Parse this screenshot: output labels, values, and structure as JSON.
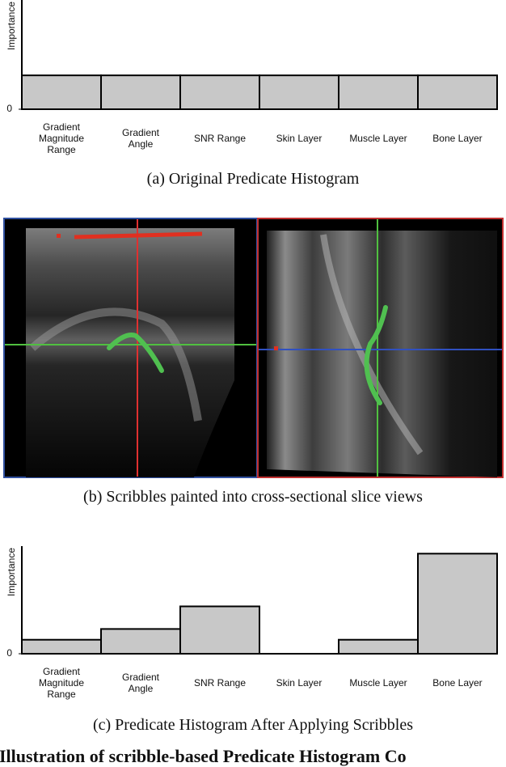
{
  "chart_data": [
    {
      "type": "bar",
      "ylabel": "Importance",
      "categories": [
        "Gradient Magnitude Range",
        "Gradient Angle",
        "SNR Range",
        "Skin Layer",
        "Muscle Layer",
        "Bone Layer"
      ],
      "values": [
        0.31,
        0.31,
        0.31,
        0.31,
        0.31,
        0.31
      ],
      "color": "#c8c8c8",
      "ylim": [
        0,
        1
      ],
      "yticks": [
        0
      ],
      "caption": "(a) Original Predicate Histogram"
    },
    {
      "type": "bar",
      "ylabel": "Importance",
      "categories": [
        "Gradient Magnitude Range",
        "Gradient Angle",
        "SNR Range",
        "Skin Layer",
        "Muscle Layer",
        "Bone Layer"
      ],
      "values": [
        0.13,
        0.23,
        0.44,
        0,
        0.13,
        0.93
      ],
      "color": "#c8c8c8",
      "ylim": [
        0,
        1
      ],
      "yticks": [
        0
      ],
      "caption": "(c) Predicate Histogram After Applying Scribbles"
    }
  ],
  "image_panel": {
    "caption": "(b) Scribbles painted into cross-sectional slice views"
  },
  "footer_text": "l: Illustration of scribble-based Predicate Histogram Co"
}
